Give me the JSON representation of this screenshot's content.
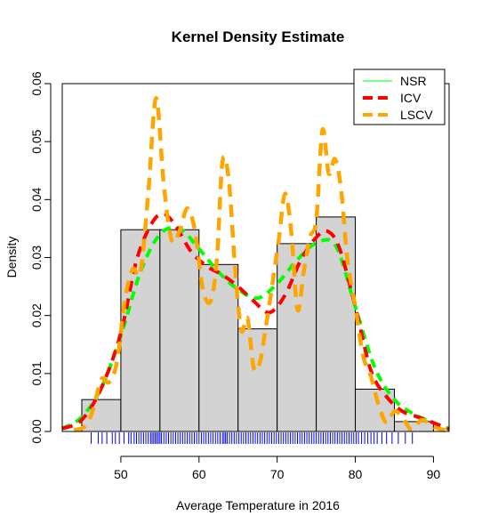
{
  "chart_data": {
    "type": "histogram",
    "title": "Kernel Density Estimate",
    "xlabel": "Average Temperature in 2016",
    "ylabel": "Density",
    "xlim": [
      42.5,
      92
    ],
    "ylim": [
      0,
      0.06
    ],
    "x_ticks": [
      50,
      60,
      70,
      80,
      90
    ],
    "y_ticks": [
      0.0,
      0.01,
      0.02,
      0.03,
      0.04,
      0.05,
      0.06
    ],
    "y_tick_labels": [
      "0.00",
      "0.01",
      "0.02",
      "0.03",
      "0.04",
      "0.05",
      "0.06"
    ],
    "histogram": {
      "fill": "#d3d3d3",
      "bins": [
        {
          "x0": 45,
          "x1": 50,
          "density": 0.0055
        },
        {
          "x0": 50,
          "x1": 55,
          "density": 0.0348
        },
        {
          "x0": 55,
          "x1": 60,
          "density": 0.0348
        },
        {
          "x0": 60,
          "x1": 65,
          "density": 0.0288
        },
        {
          "x0": 65,
          "x1": 70,
          "density": 0.0177
        },
        {
          "x0": 70,
          "x1": 75,
          "density": 0.0324
        },
        {
          "x0": 75,
          "x1": 80,
          "density": 0.037
        },
        {
          "x0": 80,
          "x1": 85,
          "density": 0.0073
        },
        {
          "x0": 85,
          "x1": 90,
          "density": 0.0017
        }
      ]
    },
    "series": [
      {
        "name": "NSR",
        "color": "#00ff00",
        "x": [
          42.5,
          45,
          47.5,
          50,
          52.5,
          55,
          57.5,
          60,
          62.5,
          65,
          67.5,
          70,
          72.5,
          75,
          77.5,
          80,
          82.5,
          85,
          87.5,
          90,
          92
        ],
        "y": [
          0.0005,
          0.0025,
          0.0075,
          0.0165,
          0.0275,
          0.034,
          0.035,
          0.0315,
          0.0275,
          0.0245,
          0.023,
          0.0255,
          0.0295,
          0.0325,
          0.032,
          0.0215,
          0.011,
          0.0055,
          0.003,
          0.0015,
          0.0005
        ]
      },
      {
        "name": "ICV",
        "color": "#ff0000",
        "x": [
          42.5,
          45,
          47.5,
          50,
          52,
          54,
          55.5,
          57,
          59,
          61,
          63,
          65,
          67,
          69,
          71,
          73,
          75,
          76.5,
          78,
          80,
          82,
          84,
          86,
          88,
          90,
          92
        ],
        "y": [
          0.0005,
          0.002,
          0.0075,
          0.017,
          0.0295,
          0.036,
          0.0375,
          0.0355,
          0.031,
          0.0285,
          0.027,
          0.025,
          0.0225,
          0.0205,
          0.0235,
          0.0295,
          0.0335,
          0.0345,
          0.0315,
          0.0215,
          0.0105,
          0.006,
          0.0035,
          0.0025,
          0.0015,
          0.0004
        ]
      },
      {
        "name": "LSCV",
        "color": "#ffa500",
        "x": [
          44,
          45.5,
          46.5,
          47.5,
          48.5,
          49.5,
          50.5,
          51.5,
          52.5,
          53.5,
          54.5,
          55.5,
          56.5,
          57.5,
          58.5,
          59.5,
          60.5,
          61.5,
          62.3,
          63,
          63.8,
          64.6,
          65.4,
          66.2,
          67,
          67.8,
          68.6,
          69.4,
          70.2,
          71,
          71.8,
          72.6,
          73.4,
          74.2,
          75,
          75.8,
          76.6,
          77.4,
          78.2,
          79,
          80,
          81,
          82,
          83,
          84,
          85,
          86,
          87.2,
          88.5,
          90,
          91.5
        ],
        "y": [
          0.0002,
          0.001,
          0.004,
          0.009,
          0.0085,
          0.012,
          0.0225,
          0.028,
          0.0275,
          0.041,
          0.0575,
          0.0425,
          0.033,
          0.0345,
          0.0385,
          0.0345,
          0.0245,
          0.0225,
          0.03,
          0.0465,
          0.0435,
          0.0285,
          0.0175,
          0.0195,
          0.011,
          0.012,
          0.0185,
          0.0255,
          0.033,
          0.041,
          0.0345,
          0.021,
          0.0275,
          0.0335,
          0.0365,
          0.052,
          0.0445,
          0.047,
          0.0415,
          0.0295,
          0.0215,
          0.013,
          0.0095,
          0.0045,
          0.0015,
          0.0035,
          0.0025,
          0.0003,
          0.002,
          0.0008,
          0.0002
        ]
      }
    ],
    "legend": {
      "position": "top-right",
      "entries": [
        {
          "label": "NSR",
          "color": "#00ff00",
          "style": "thin"
        },
        {
          "label": "ICV",
          "color": "#ff0000",
          "style": "dashed"
        },
        {
          "label": "LSCV",
          "color": "#ffa500",
          "style": "dashed"
        }
      ]
    },
    "rug": {
      "color": "#0000ff",
      "values": [
        46.2,
        47.1,
        47.6,
        48.2,
        48.9,
        49.3,
        49.8,
        50.4,
        51.0,
        51.3,
        51.7,
        52.0,
        52.3,
        52.6,
        52.9,
        53.2,
        53.5,
        53.8,
        54.0,
        54.2,
        54.4,
        54.6,
        54.8,
        55.0,
        55.2,
        55.5,
        55.8,
        56.1,
        56.4,
        56.7,
        57.0,
        57.3,
        57.6,
        57.9,
        58.2,
        58.5,
        58.8,
        59.1,
        59.4,
        59.7,
        60.0,
        60.3,
        60.6,
        60.9,
        61.2,
        61.5,
        61.8,
        62.1,
        62.4,
        62.7,
        63.0,
        63.2,
        63.4,
        63.6,
        63.9,
        64.2,
        64.5,
        64.8,
        65.1,
        65.4,
        65.7,
        66.0,
        66.3,
        66.6,
        66.9,
        67.2,
        67.5,
        67.8,
        68.1,
        68.4,
        68.7,
        69.0,
        69.3,
        69.6,
        69.9,
        70.2,
        70.5,
        70.8,
        71.1,
        71.4,
        71.7,
        72.0,
        72.3,
        72.6,
        72.9,
        73.2,
        73.5,
        73.8,
        74.1,
        74.4,
        74.7,
        75.0,
        75.3,
        75.6,
        75.9,
        76.2,
        76.5,
        76.8,
        77.1,
        77.4,
        77.7,
        78.0,
        78.3,
        78.6,
        78.9,
        79.2,
        79.5,
        79.8,
        80.1,
        80.4,
        80.8,
        81.2,
        81.6,
        82.0,
        82.4,
        82.8,
        83.4,
        84.0,
        84.7,
        85.5,
        86.4,
        87.3
      ]
    }
  }
}
